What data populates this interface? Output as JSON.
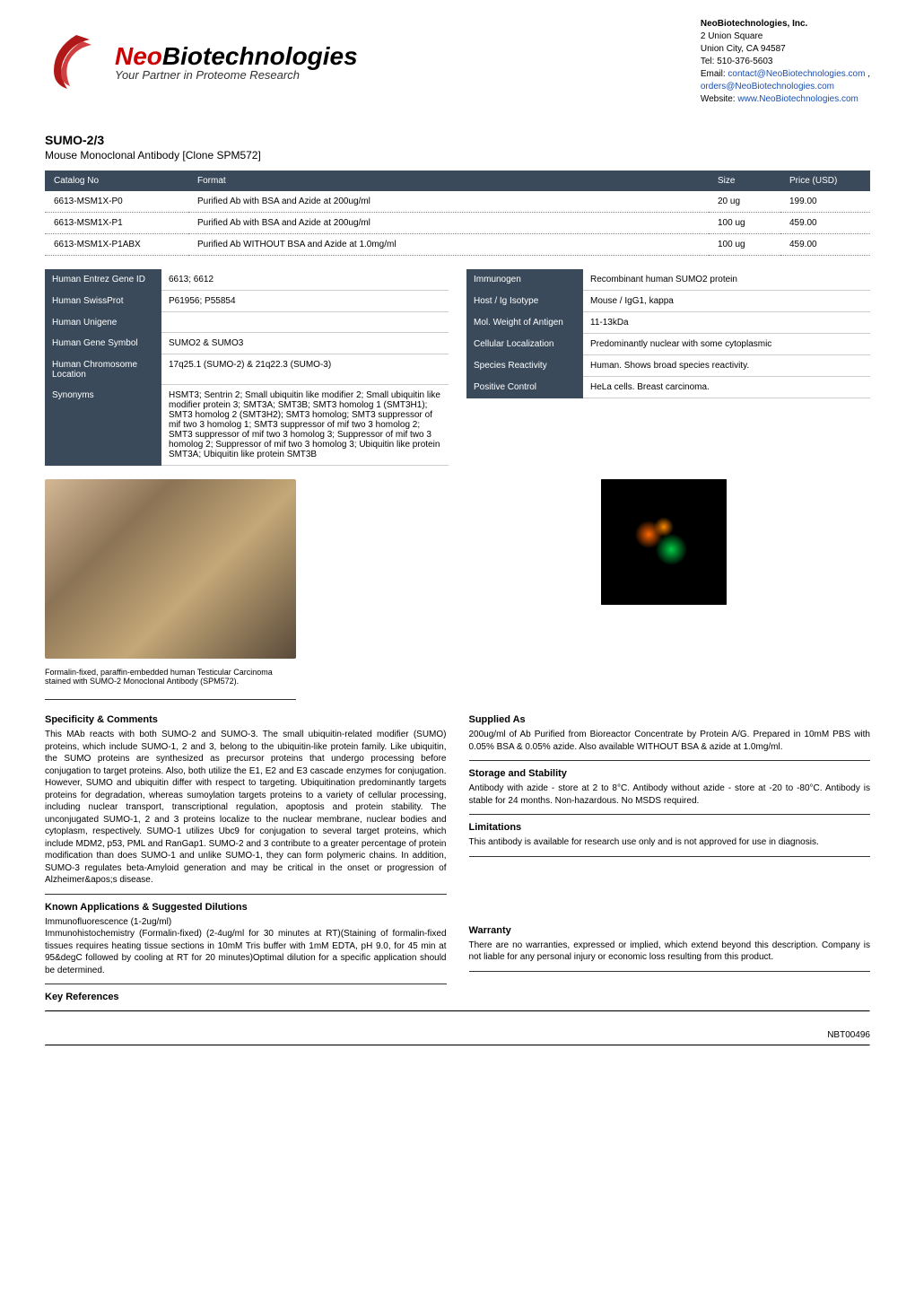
{
  "company": {
    "name_bold": "NeoBiotechnologies, Inc.",
    "addr1": "2 Union Square",
    "addr2": "Union City, CA 94587",
    "tel": "Tel: 510-376-5603",
    "email_label": "Email: ",
    "email1": "contact@NeoBiotechnologies.com",
    "email_sep": " , ",
    "email2": "orders@NeoBiotechnologies.com",
    "web_label": "Website: ",
    "website": "www.NeoBiotechnologies.com",
    "logo_neo": "Neo",
    "logo_bio": "Biotechnologies",
    "logo_tag": "Your Partner in Proteome Research"
  },
  "product": {
    "name": "SUMO-2/3",
    "subtitle": "Mouse Monoclonal Antibody [Clone SPM572]"
  },
  "catalog": {
    "headers": [
      "Catalog No",
      "Format",
      "Size",
      "Price (USD)"
    ],
    "rows": [
      [
        "6613-MSM1X-P0",
        "Purified Ab with BSA and Azide at 200ug/ml",
        "20 ug",
        "199.00"
      ],
      [
        "6613-MSM1X-P1",
        "Purified Ab with BSA and Azide at 200ug/ml",
        "100 ug",
        "459.00"
      ],
      [
        "6613-MSM1X-P1ABX",
        "Purified Ab WITHOUT BSA and Azide at 1.0mg/ml",
        "100 ug",
        "459.00"
      ]
    ]
  },
  "left_info": [
    [
      "Human Entrez Gene ID",
      "6613; 6612"
    ],
    [
      "Human SwissProt",
      "P61956; P55854"
    ],
    [
      "Human Unigene",
      ""
    ],
    [
      "Human Gene Symbol",
      "SUMO2 & SUMO3"
    ],
    [
      "Human Chromosome Location",
      "17q25.1 (SUMO-2) & 21q22.3 (SUMO-3)"
    ],
    [
      "Synonyms",
      "HSMT3; Sentrin 2; Small ubiquitin like modifier 2; Small ubiquitin like modifier protein 3; SMT3A; SMT3B; SMT3 homolog 1 (SMT3H1); SMT3 homolog 2 (SMT3H2); SMT3 homolog; SMT3 suppressor of mif two 3 homolog 1; SMT3 suppressor of mif two 3 homolog 2; SMT3 suppressor of mif two 3 homolog 3; Suppressor of mif two 3 homolog 2; Suppressor of mif two 3 homolog 3; Ubiquitin like protein SMT3A; Ubiquitin like protein SMT3B"
    ]
  ],
  "right_info": [
    [
      "Immunogen",
      "Recombinant human SUMO2 protein"
    ],
    [
      "Host / Ig Isotype",
      "Mouse / IgG1, kappa"
    ],
    [
      "Mol. Weight of Antigen",
      "11-13kDa"
    ],
    [
      "Cellular Localization",
      "Predominantly nuclear with some cytoplasmic"
    ],
    [
      "Species Reactivity",
      "Human. Shows broad species reactivity."
    ],
    [
      "Positive Control",
      "HeLa cells. Breast carcinoma."
    ]
  ],
  "caption": "Formalin-fixed, paraffin-embedded human Testicular Carcinoma stained with SUMO-2 Monoclonal Antibody (SPM572).",
  "sections": {
    "specificity_title": "Specificity & Comments",
    "specificity": "This MAb reacts with both SUMO-2 and SUMO-3. The small ubiquitin-related modifier (SUMO) proteins, which include SUMO-1, 2 and 3, belong to the ubiquitin-like protein family. Like ubiquitin, the SUMO proteins are synthesized as precursor proteins that undergo processing before conjugation to target proteins. Also, both utilize the E1, E2 and E3 cascade enzymes for conjugation. However, SUMO and ubiquitin differ with respect to targeting. Ubiquitination predominantly targets proteins for degradation, whereas sumoylation targets proteins to a variety of cellular processing, including nuclear transport, transcriptional regulation, apoptosis and protein stability. The unconjugated SUMO-1, 2 and 3 proteins localize to the nuclear membrane, nuclear bodies and cytoplasm, respectively. SUMO-1 utilizes Ubc9 for conjugation to several target proteins, which include MDM2, p53, PML and RanGap1. SUMO-2 and 3 contribute to a greater percentage of protein modification than does SUMO-1 and unlike SUMO-1, they can form polymeric chains. In addition, SUMO-3 regulates beta-Amyloid generation and may be critical in the onset or progression of Alzheimer&apos;s disease.",
    "apps_title": "Known Applications & Suggested Dilutions",
    "apps": "Immunofluorescence (1-2ug/ml)\nImmunohistochemistry (Formalin-fixed) (2-4ug/ml for 30 minutes at RT)(Staining of formalin-fixed tissues requires heating tissue sections in 10mM Tris buffer with 1mM EDTA, pH 9.0, for 45 min at 95&degC followed by cooling at RT for 20 minutes)Optimal dilution for a specific application should be determined.",
    "keyref_title": "Key References",
    "supplied_title": "Supplied As",
    "supplied": "200ug/ml of Ab Purified from Bioreactor Concentrate by Protein A/G. Prepared in 10mM PBS with 0.05% BSA & 0.05% azide. Also available WITHOUT BSA & azide at 1.0mg/ml.",
    "storage_title": "Storage and Stability",
    "storage": "Antibody with azide - store at 2 to 8°C. Antibody without azide - store at -20 to -80°C. Antibody is stable for 24 months. Non-hazardous. No MSDS required.",
    "limit_title": "Limitations",
    "limit": "This antibody is available for research use only and is not approved for use in diagnosis.",
    "warranty_title": "Warranty",
    "warranty": "There are no warranties, expressed or implied, which extend beyond this description. Company is not liable for any personal injury or economic loss resulting from this product."
  },
  "footer_code": "NBT00496"
}
